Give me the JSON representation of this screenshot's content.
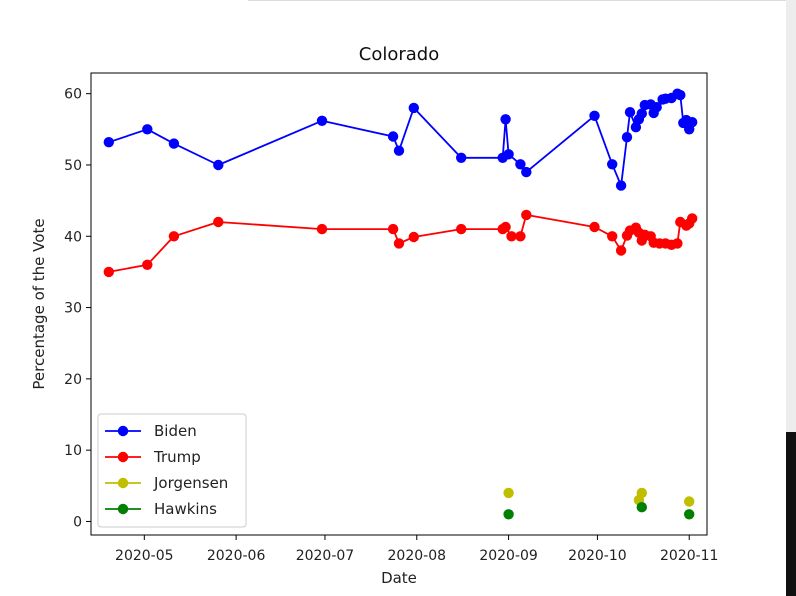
{
  "chart_data": {
    "type": "line",
    "title": "Colorado",
    "xlabel": "Date",
    "ylabel": "Percentage of the Vote",
    "xlim": [
      "2020-04-13",
      "2020-11-07"
    ],
    "ylim": [
      -1.9,
      62.9
    ],
    "x_ticks": [
      "2020-05",
      "2020-06",
      "2020-07",
      "2020-08",
      "2020-09",
      "2020-10",
      "2020-11"
    ],
    "y_ticks": [
      0,
      10,
      20,
      30,
      40,
      50,
      60
    ],
    "grid": false,
    "legend_position": "lower-left",
    "series": [
      {
        "name": "Biden",
        "color": "#0000ff",
        "style": "line-marker",
        "points": [
          [
            "2020-04-19",
            53.2
          ],
          [
            "2020-05-02",
            55.0
          ],
          [
            "2020-05-11",
            53.0
          ],
          [
            "2020-05-26",
            50.0
          ],
          [
            "2020-06-30",
            56.2
          ],
          [
            "2020-07-24",
            54.0
          ],
          [
            "2020-07-26",
            52.0
          ],
          [
            "2020-07-31",
            58.0
          ],
          [
            "2020-08-16",
            51.0
          ],
          [
            "2020-08-30",
            51.0
          ],
          [
            "2020-08-31",
            56.4
          ],
          [
            "2020-09-01",
            51.5
          ],
          [
            "2020-09-05",
            50.1
          ],
          [
            "2020-09-07",
            49.0
          ],
          [
            "2020-09-30",
            56.9
          ],
          [
            "2020-10-06",
            50.1
          ],
          [
            "2020-10-09",
            47.1
          ],
          [
            "2020-10-11",
            53.9
          ],
          [
            "2020-10-12",
            57.4
          ],
          [
            "2020-10-14",
            55.3
          ],
          [
            "2020-10-15",
            56.4
          ],
          [
            "2020-10-16",
            57.2
          ],
          [
            "2020-10-17",
            58.4
          ],
          [
            "2020-10-19",
            58.5
          ],
          [
            "2020-10-20",
            57.3
          ],
          [
            "2020-10-21",
            58.1
          ],
          [
            "2020-10-23",
            59.2
          ],
          [
            "2020-10-24",
            59.3
          ],
          [
            "2020-10-26",
            59.4
          ],
          [
            "2020-10-28",
            60.0
          ],
          [
            "2020-10-29",
            59.8
          ],
          [
            "2020-10-30",
            55.9
          ],
          [
            "2020-10-31",
            56.3
          ],
          [
            "2020-11-01",
            55.0
          ],
          [
            "2020-11-02",
            56.0
          ]
        ]
      },
      {
        "name": "Trump",
        "color": "#ff0000",
        "style": "line-marker",
        "points": [
          [
            "2020-04-19",
            35.0
          ],
          [
            "2020-05-02",
            36.0
          ],
          [
            "2020-05-11",
            40.0
          ],
          [
            "2020-05-26",
            42.0
          ],
          [
            "2020-06-30",
            41.0
          ],
          [
            "2020-07-24",
            41.0
          ],
          [
            "2020-07-26",
            39.0
          ],
          [
            "2020-07-31",
            39.9
          ],
          [
            "2020-08-16",
            41.0
          ],
          [
            "2020-08-30",
            41.0
          ],
          [
            "2020-08-31",
            41.3
          ],
          [
            "2020-09-02",
            40.0
          ],
          [
            "2020-09-05",
            40.0
          ],
          [
            "2020-09-07",
            43.0
          ],
          [
            "2020-09-30",
            41.3
          ],
          [
            "2020-10-06",
            40.0
          ],
          [
            "2020-10-09",
            38.0
          ],
          [
            "2020-10-11",
            40.1
          ],
          [
            "2020-10-12",
            40.8
          ],
          [
            "2020-10-14",
            41.2
          ],
          [
            "2020-10-15",
            40.5
          ],
          [
            "2020-10-16",
            39.4
          ],
          [
            "2020-10-17",
            40.2
          ],
          [
            "2020-10-19",
            40.0
          ],
          [
            "2020-10-20",
            39.1
          ],
          [
            "2020-10-22",
            39.0
          ],
          [
            "2020-10-24",
            39.0
          ],
          [
            "2020-10-26",
            38.8
          ],
          [
            "2020-10-28",
            39.0
          ],
          [
            "2020-10-29",
            42.0
          ],
          [
            "2020-10-31",
            41.5
          ],
          [
            "2020-11-01",
            41.8
          ],
          [
            "2020-11-02",
            42.5
          ]
        ]
      },
      {
        "name": "Jorgensen",
        "color": "#bfbf00",
        "style": "marker",
        "points": [
          [
            "2020-09-01",
            4.0
          ],
          [
            "2020-10-15",
            3.0
          ],
          [
            "2020-10-16",
            4.0
          ],
          [
            "2020-11-01",
            2.8
          ]
        ]
      },
      {
        "name": "Hawkins",
        "color": "#008000",
        "style": "marker",
        "points": [
          [
            "2020-09-01",
            1.0
          ],
          [
            "2020-10-16",
            2.0
          ],
          [
            "2020-11-01",
            1.0
          ]
        ]
      }
    ]
  }
}
